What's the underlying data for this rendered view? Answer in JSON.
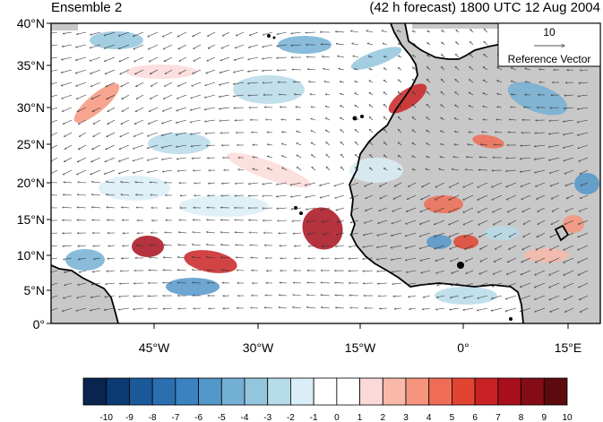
{
  "header": {
    "left_title": "Ensemble 2",
    "right_title": "(42 h forecast) 1800 UTC 12 Aug 2004"
  },
  "map": {
    "lat_labels": [
      "40°N",
      "35°N",
      "30°N",
      "25°N",
      "20°N",
      "15°N",
      "10°N",
      "5°N",
      "0°"
    ],
    "lon_labels": [
      "45°W",
      "30°W",
      "15°W",
      "0°",
      "15°E"
    ],
    "land_color": "#c8c8c8",
    "ocean_color": "#ffffff"
  },
  "reference_vector": {
    "value": "10",
    "label": "Reference Vector"
  },
  "colorbar": {
    "labels": [
      "-10",
      "-9",
      "-8",
      "-7",
      "-6",
      "-5",
      "-4",
      "-3",
      "-2",
      "-1",
      "0",
      "1",
      "2",
      "3",
      "4",
      "5",
      "6",
      "7",
      "8",
      "9",
      "10"
    ],
    "colors": [
      "#08244f",
      "#0c3a73",
      "#1a5a99",
      "#2a6fb0",
      "#3a82c0",
      "#5497c9",
      "#74afd5",
      "#93c5dd",
      "#b6dbe9",
      "#d9eef6",
      "#ffffff",
      "#ffffff",
      "#fbd9d9",
      "#f8b9aa",
      "#f6957e",
      "#ef6c55",
      "#e24432",
      "#ca2224",
      "#a80f1c",
      "#840c17",
      "#5c0a0e"
    ]
  }
}
